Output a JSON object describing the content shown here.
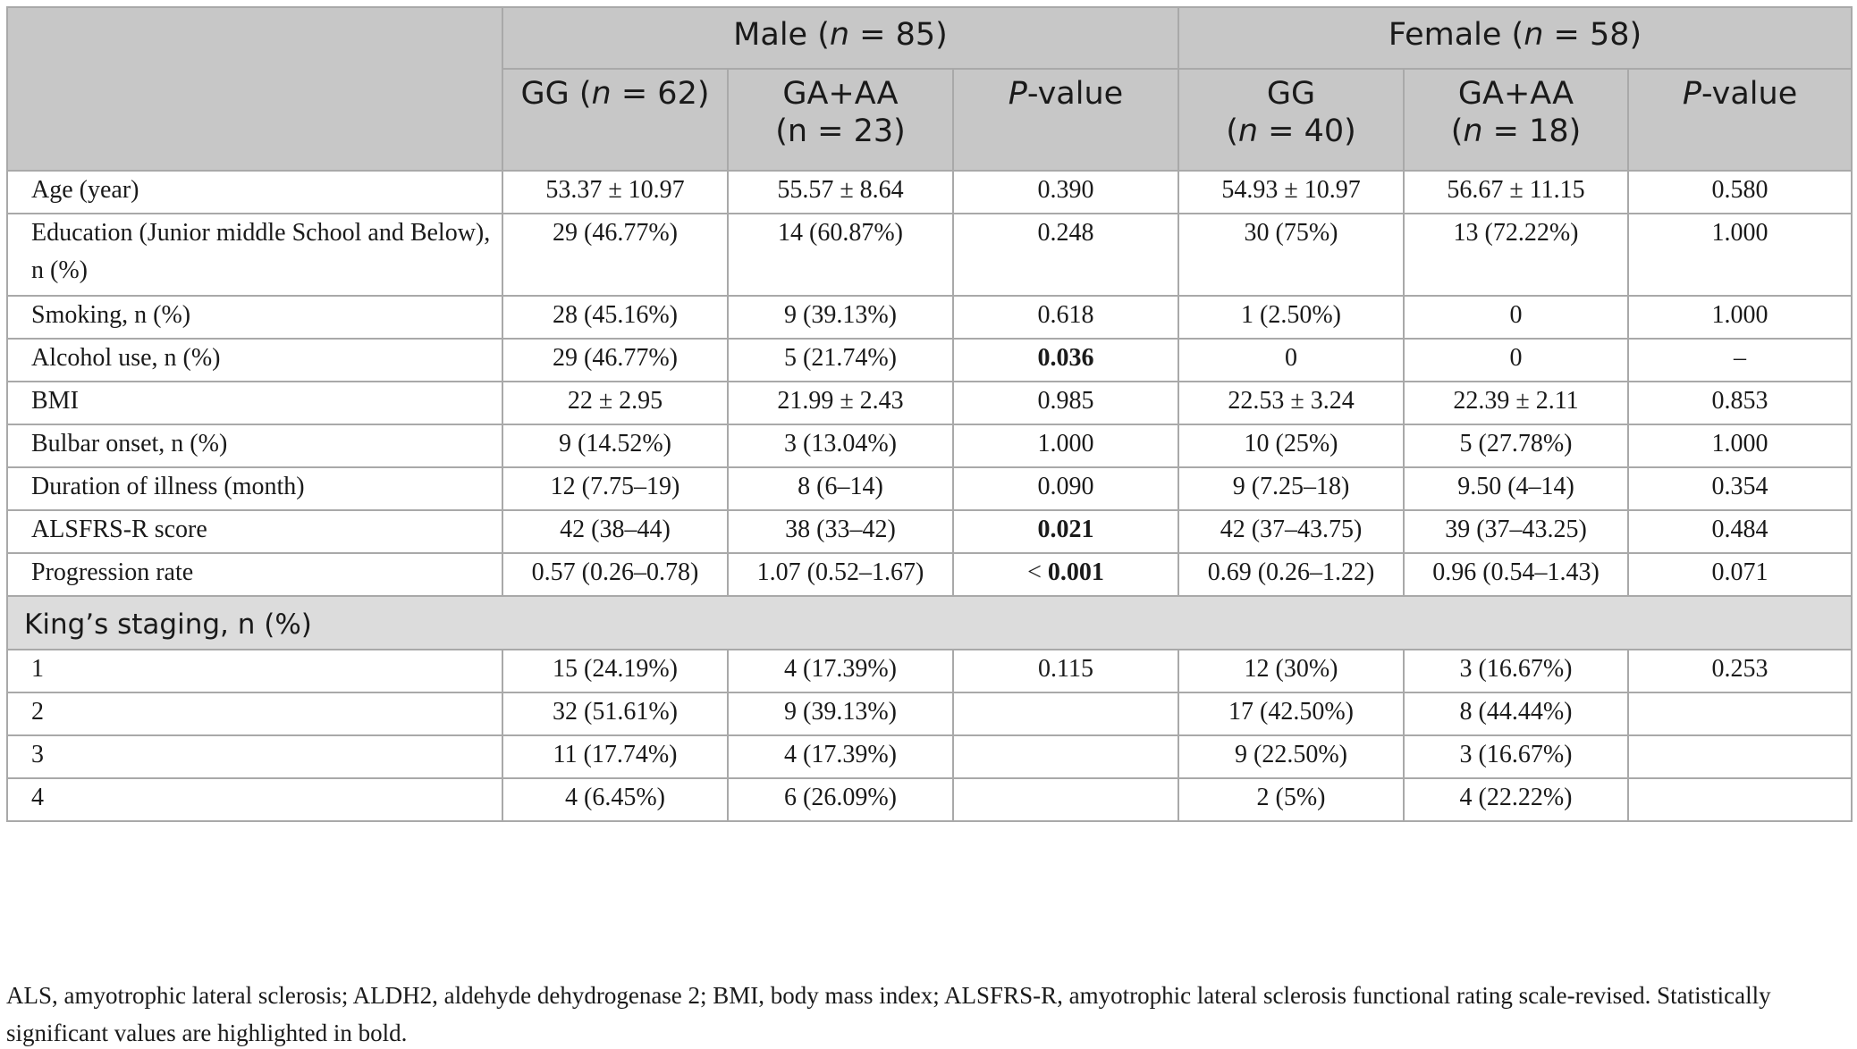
{
  "table": {
    "groups": [
      {
        "label": "Male (",
        "n_sym": "n",
        "n_val": " = 85)"
      },
      {
        "label": "Female (",
        "n_sym": "n",
        "n_val": " = 58)"
      }
    ],
    "subheaders": {
      "male_gg": {
        "line1a": "GG (",
        "n_sym": "n",
        "line1b": " = 62)"
      },
      "male_gaaa": {
        "line1": "GA+AA",
        "line2": "(n = 23)"
      },
      "pvalue_p": "P",
      "pvalue_rest": "-value",
      "female_gg": {
        "line1": "GG",
        "line2a": "(",
        "n_sym": "n",
        "line2b": " = 40)"
      },
      "female_gaaa": {
        "line1": "GA+AA",
        "line2a": "(",
        "n_sym": "n",
        "line2b": " = 18)"
      }
    },
    "rows": [
      {
        "label": "Age (year)",
        "cells": [
          "53.37 ± 10.97",
          "55.57 ± 8.64",
          "0.390",
          "54.93 ± 10.97",
          "56.67 ± 11.15",
          "0.580"
        ]
      },
      {
        "label": "Education (Junior middle School and Below), n (%)",
        "cells": [
          "29 (46.77%)",
          "14 (60.87%)",
          "0.248",
          "30 (75%)",
          "13 (72.22%)",
          "1.000"
        ]
      },
      {
        "label": "Smoking, n (%)",
        "cells": [
          "28 (45.16%)",
          "9 (39.13%)",
          "0.618",
          "1 (2.50%)",
          "0",
          "1.000"
        ]
      },
      {
        "label": "Alcohol use, n (%)",
        "cells": [
          "29 (46.77%)",
          "5 (21.74%)",
          "0.036",
          "0",
          "0",
          "–"
        ]
      },
      {
        "label": "BMI",
        "cells": [
          "22 ± 2.95",
          "21.99 ± 2.43",
          "0.985",
          "22.53 ± 3.24",
          "22.39 ± 2.11",
          "0.853"
        ]
      },
      {
        "label": "Bulbar onset, n (%)",
        "cells": [
          "9 (14.52%)",
          "3 (13.04%)",
          "1.000",
          "10 (25%)",
          "5 (27.78%)",
          "1.000"
        ]
      },
      {
        "label": "Duration of illness (month)",
        "cells": [
          "12 (7.75–19)",
          "8 (6–14)",
          "0.090",
          "9 (7.25–18)",
          "9.50 (4–14)",
          "0.354"
        ]
      },
      {
        "label": "ALSFRS-R score",
        "cells": [
          "42 (38–44)",
          "38 (33–42)",
          "0.021",
          "42 (37–43.75)",
          "39 (37–43.25)",
          "0.484"
        ]
      },
      {
        "label": "Progression rate",
        "cells": [
          "0.57 (0.26–0.78)",
          "1.07 (0.52–1.67)",
          "< ",
          "0.69 (0.26–1.22)",
          "0.96 (0.54–1.43)",
          "0.071"
        ],
        "bold_part": "0.001"
      }
    ],
    "section_label": "King’s staging, n (%)",
    "staging_rows": [
      {
        "label": "1",
        "cells": [
          "15 (24.19%)",
          "4 (17.39%)",
          "0.115",
          "12 (30%)",
          "3 (16.67%)",
          "0.253"
        ]
      },
      {
        "label": "2",
        "cells": [
          "32 (51.61%)",
          "9 (39.13%)",
          "",
          "17 (42.50%)",
          "8 (44.44%)",
          ""
        ]
      },
      {
        "label": "3",
        "cells": [
          "11 (17.74%)",
          "4 (17.39%)",
          "",
          "9 (22.50%)",
          "3 (16.67%)",
          ""
        ]
      },
      {
        "label": "4",
        "cells": [
          "4 (6.45%)",
          "6 (26.09%)",
          "",
          "2 (5%)",
          "4 (22.22%)",
          ""
        ]
      }
    ]
  },
  "footnote": "ALS, amyotrophic lateral sclerosis; ALDH2, aldehyde dehydrogenase 2; BMI, body mass index; ALSFRS-R, amyotrophic lateral sclerosis functional rating scale-revised. Statistically significant values are highlighted in bold."
}
